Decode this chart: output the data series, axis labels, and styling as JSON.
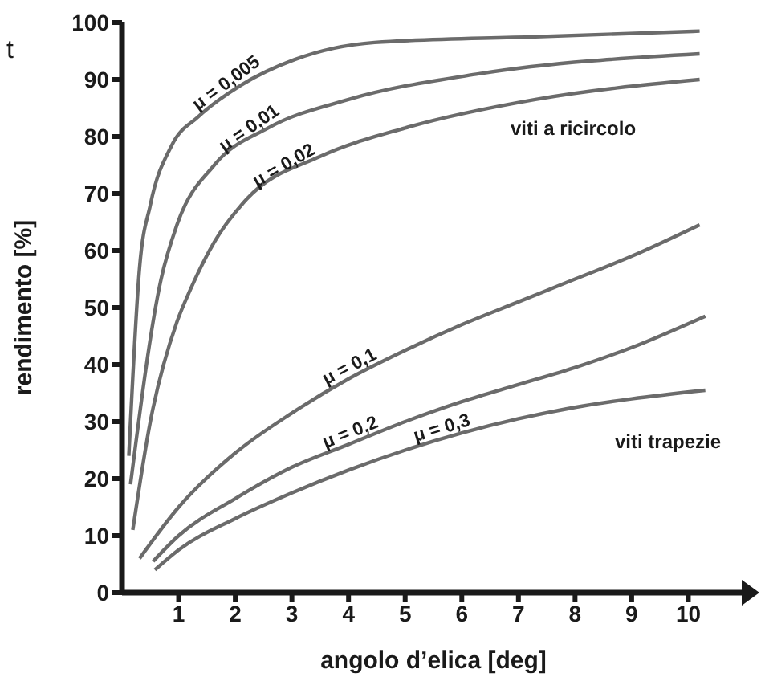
{
  "chart_data": {
    "type": "line",
    "xlabel": "angolo d’elica [deg]",
    "ylabel": "rendimento [%]",
    "xlim": [
      0,
      11
    ],
    "xticks": [
      1,
      2,
      3,
      4,
      5,
      6,
      7,
      8,
      9,
      10
    ],
    "ylim": [
      0,
      100
    ],
    "yticks": [
      0,
      10,
      20,
      30,
      40,
      50,
      60,
      70,
      80,
      90,
      100
    ],
    "annotations": [
      "t",
      "viti a ricircolo",
      "viti trapezie"
    ],
    "series": [
      {
        "name": "μ = 0,005",
        "color": "#6b6b6b",
        "x": [
          0.12,
          0.31,
          0.5,
          0.88,
          1.35,
          2.1,
          3.05,
          4.46,
          7.3,
          10.2
        ],
        "values": [
          24,
          57,
          68,
          78.5,
          83.5,
          89,
          93.5,
          96.5,
          97.5,
          98.5
        ]
      },
      {
        "name": "μ = 0,01",
        "color": "#6b6b6b",
        "x": [
          0.15,
          0.69,
          0.97,
          1.63,
          2.58,
          4,
          6.3,
          10.2
        ],
        "values": [
          19,
          55,
          64.5,
          75,
          81.5,
          86.5,
          91,
          94.5
        ]
      },
      {
        "name": "μ = 0,02",
        "color": "#6b6b6b",
        "x": [
          0.19,
          0.5,
          0.97,
          1.2,
          1.63,
          2.2,
          3.5,
          5,
          7.3,
          10.2
        ],
        "values": [
          11,
          30,
          47.5,
          53,
          61.5,
          69,
          76.5,
          81.5,
          86.5,
          90
        ]
      },
      {
        "name": "μ = 0,1",
        "color": "#6b6b6b",
        "x": [
          0.31,
          1,
          2,
          3,
          4,
          5,
          6,
          7,
          8,
          9,
          10.2
        ],
        "values": [
          6,
          15,
          24.5,
          31.5,
          37.5,
          42.5,
          47,
          51,
          55,
          59,
          64.5
        ]
      },
      {
        "name": "μ = 0,2",
        "color": "#6b6b6b",
        "x": [
          0.55,
          1,
          2,
          3,
          4,
          5,
          6,
          7,
          8,
          9,
          10.3
        ],
        "values": [
          5.5,
          10,
          16.5,
          22,
          26,
          30,
          33.5,
          36.5,
          39.5,
          43,
          48.5
        ]
      },
      {
        "name": "μ = 0,3",
        "color": "#6b6b6b",
        "x": [
          0.58,
          1,
          2,
          3,
          4,
          5,
          6,
          7,
          8,
          9,
          10.3
        ],
        "values": [
          4,
          7.5,
          13,
          17.5,
          21.5,
          25,
          28,
          30.5,
          32.5,
          34,
          35.5
        ]
      }
    ]
  }
}
